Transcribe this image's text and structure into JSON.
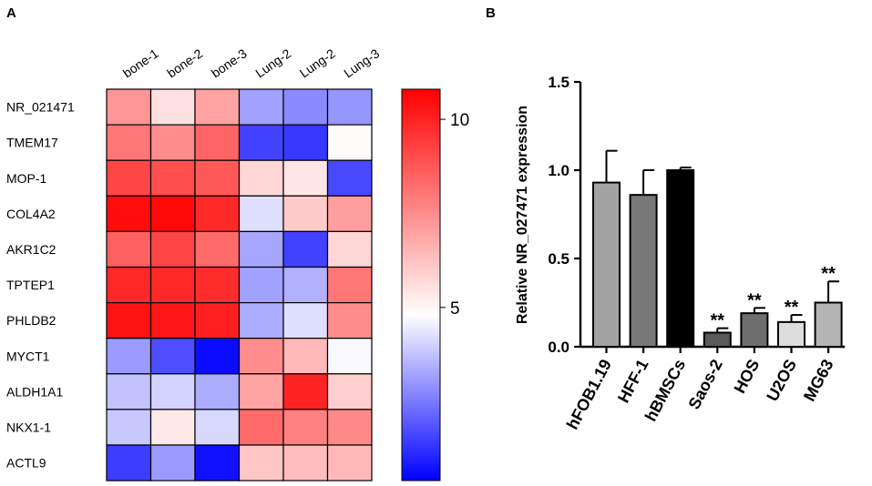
{
  "panels": {
    "a_label": "A",
    "b_label": "B"
  },
  "colors": {
    "low": "#0000ff",
    "mid": "#ffffff",
    "high": "#ff0000",
    "grid": "#000000"
  },
  "chart_data": [
    {
      "type": "heatmap",
      "title": "",
      "columns": [
        "bone-1",
        "bone-2",
        "bone-3",
        "Lung-2",
        "Lung-2",
        "Lung-3"
      ],
      "rows": [
        "NR_021471",
        "TMEM17",
        "MOP-1",
        "COL4A2",
        "AKR1C2",
        "TPTEP1",
        "PHLDB2",
        "MYCT1",
        "ALDH1A1",
        "NKX1-1",
        "ACTL9"
      ],
      "values": [
        [
          7.4,
          5.7,
          7.1,
          3.3,
          2.9,
          3.1
        ],
        [
          8.1,
          7.6,
          8.5,
          1.6,
          1.4,
          5.1
        ],
        [
          9.2,
          9.0,
          8.8,
          5.9,
          5.6,
          1.7
        ],
        [
          10.5,
          10.6,
          9.9,
          4.4,
          6.2,
          7.2
        ],
        [
          8.6,
          9.2,
          8.4,
          3.4,
          1.6,
          5.9
        ],
        [
          9.9,
          9.9,
          9.8,
          3.3,
          3.6,
          8.1
        ],
        [
          10.4,
          10.3,
          10.1,
          3.5,
          4.4,
          7.6
        ],
        [
          3.2,
          1.8,
          0.6,
          7.6,
          6.6,
          4.9
        ],
        [
          3.9,
          4.2,
          3.5,
          7.1,
          10.0,
          6.1
        ],
        [
          4.0,
          5.5,
          4.3,
          8.4,
          7.9,
          7.7
        ],
        [
          1.5,
          3.2,
          0.7,
          6.3,
          6.5,
          6.6
        ]
      ],
      "colorbar": {
        "range": [
          0.4,
          10.8
        ],
        "ticks": [
          5,
          10
        ],
        "tick_labels": [
          "5",
          "10"
        ]
      }
    },
    {
      "type": "bar",
      "title": "",
      "categories": [
        "hFOB1.19",
        "HFF-1",
        "hBMSCs",
        "Saos-2",
        "HOS",
        "U2OS",
        "MG63"
      ],
      "values": [
        0.93,
        0.86,
        1.0,
        0.08,
        0.19,
        0.14,
        0.25
      ],
      "errors": [
        0.18,
        0.14,
        0.015,
        0.025,
        0.03,
        0.04,
        0.12
      ],
      "fills": [
        "#a3a3a3",
        "#787878",
        "#000000",
        "#5a5a5a",
        "#6e6e6e",
        "#dcdcdc",
        "#b4b4b4"
      ],
      "significance": [
        "",
        "",
        "",
        "**",
        "**",
        "**",
        "**"
      ],
      "xlabel": "",
      "ylabel": "Relative NR_027471 expression",
      "ylim": [
        0,
        1.5
      ],
      "yticks": [
        0.0,
        0.5,
        1.0,
        1.5
      ],
      "ytick_labels": [
        "0.0",
        "0.5",
        "1.0",
        "1.5"
      ]
    }
  ]
}
